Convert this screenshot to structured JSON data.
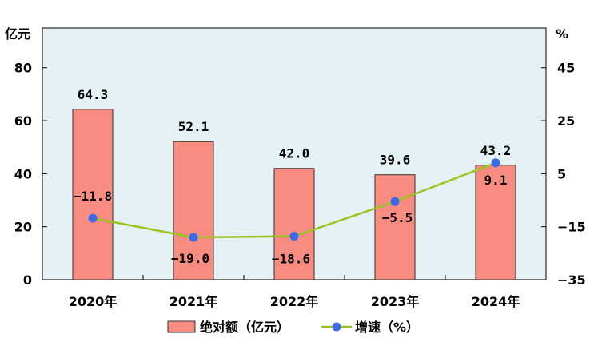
{
  "chart_data": {
    "type": "bar+line",
    "categories": [
      "2020年",
      "2021年",
      "2022年",
      "2023年",
      "2024年"
    ],
    "series": [
      {
        "name": "绝对额（亿元）",
        "type": "bar",
        "axis": "left",
        "values": [
          64.3,
          52.1,
          42.0,
          39.6,
          43.2
        ],
        "labels": [
          "64.3",
          "52.1",
          "42.0",
          "39.6",
          "43.2"
        ]
      },
      {
        "name": "增速（%）",
        "type": "line",
        "axis": "right",
        "values": [
          -11.8,
          -19.0,
          -18.6,
          -5.5,
          9.1
        ],
        "labels": [
          "−11.8",
          "−19.0",
          "−18.6",
          "−5.5",
          "9.1"
        ]
      }
    ],
    "left_axis": {
      "unit": "亿元",
      "ylim": [
        0,
        95
      ],
      "ticks": [
        0,
        20,
        40,
        60,
        80
      ],
      "tick_labels": [
        "0",
        "20",
        "40",
        "60",
        "80"
      ]
    },
    "right_axis": {
      "unit": "%",
      "ylim": [
        -35,
        60
      ],
      "ticks": [
        -35,
        -15,
        5,
        25,
        45
      ],
      "tick_labels": [
        "−35",
        "−15",
        "5",
        "25",
        "45"
      ]
    },
    "grid": false,
    "legend": "bottom",
    "colors": {
      "plot_bg": "#e4f1f5",
      "bar_fill": "#f98c80",
      "bar_stroke": "#333333",
      "line": "#99c41d",
      "marker": "#3b69e8"
    }
  }
}
